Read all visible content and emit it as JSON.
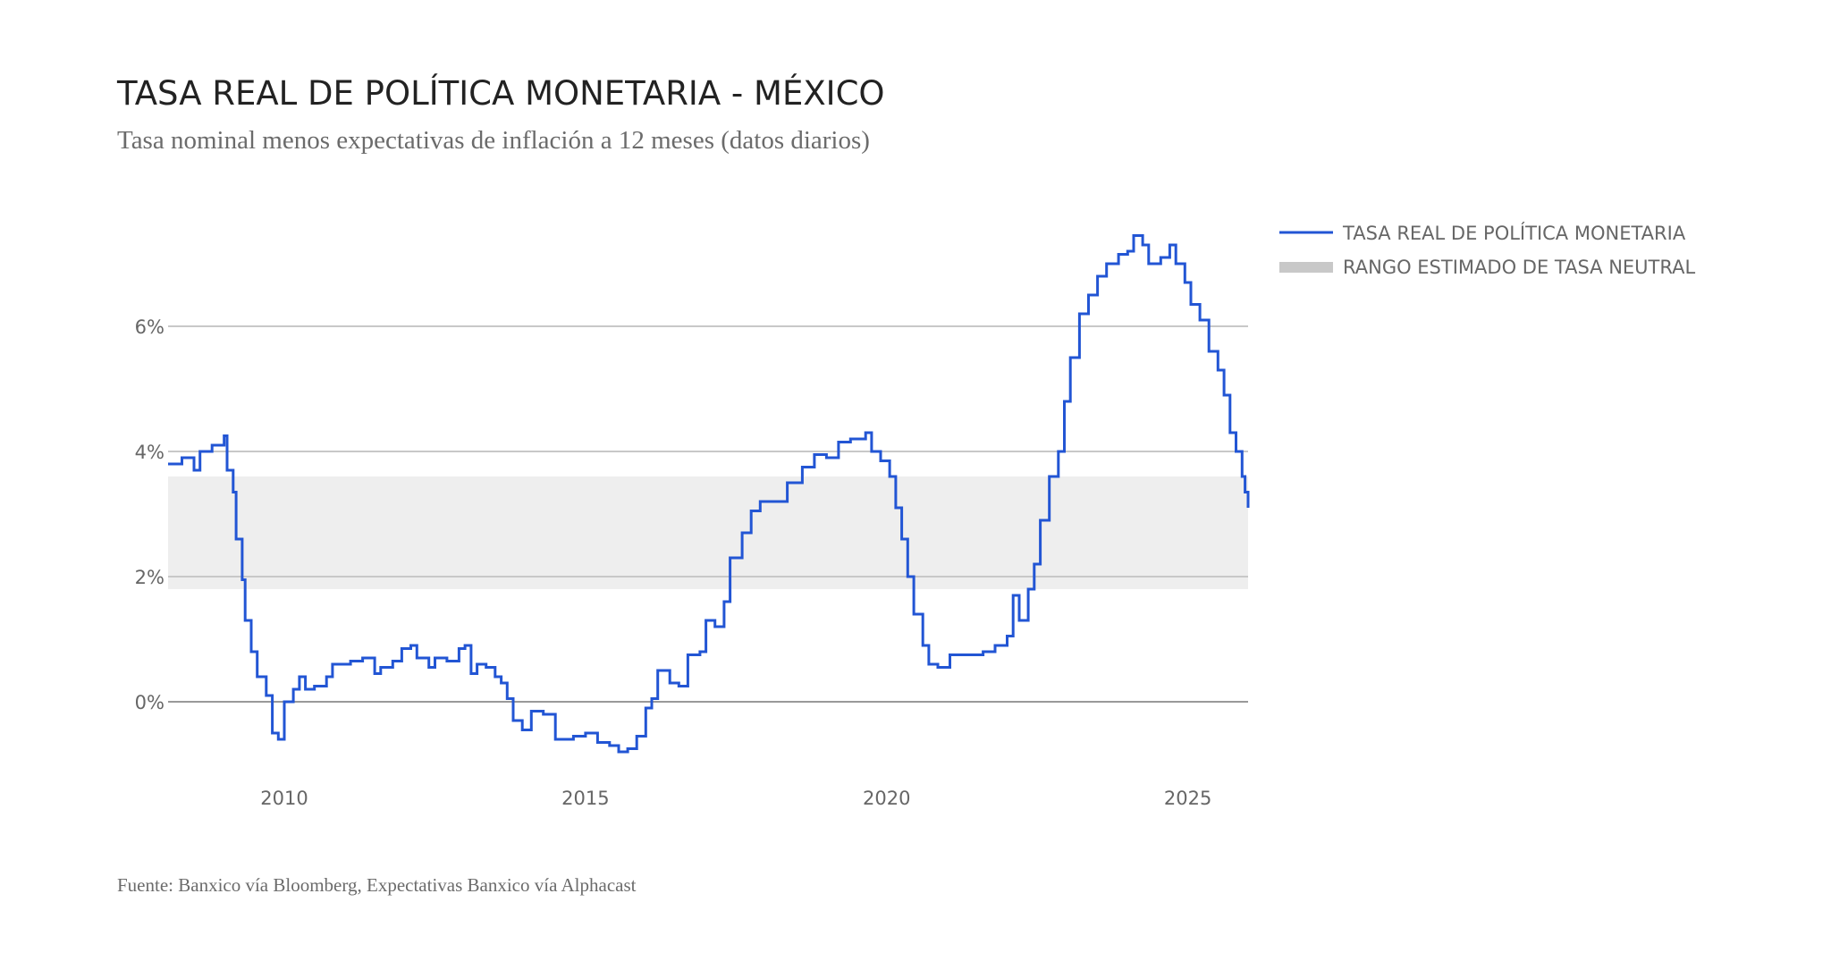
{
  "colors": {
    "line": "#2255d4",
    "band": "#eeeeee",
    "grid": "#c8c8c8",
    "zero": "#999999",
    "legend_band": "#c8c8c8"
  },
  "chart_data": {
    "type": "line",
    "title": "TASA REAL DE POLÍTICA MONETARIA - MÉXICO",
    "subtitle": "Tasa nominal menos expectativas de inflación a 12 meses (datos diarios)",
    "source": "Fuente: Banxico vía Bloomberg, Expectativas Banxico vía Alphacast",
    "xlabel": "",
    "ylabel": "",
    "xlim": [
      2008.07,
      2026.0
    ],
    "ylim": [
      -1.2,
      7.5
    ],
    "x_ticks": [
      {
        "value": 2010,
        "label": "2010"
      },
      {
        "value": 2015,
        "label": "2015"
      },
      {
        "value": 2020,
        "label": "2020"
      },
      {
        "value": 2025,
        "label": "2025"
      }
    ],
    "y_ticks": [
      {
        "value": 0,
        "label": "0%"
      },
      {
        "value": 2,
        "label": "2%"
      },
      {
        "value": 4,
        "label": "4%"
      },
      {
        "value": 6,
        "label": "6%"
      }
    ],
    "grid": true,
    "legend_position": "right",
    "band": {
      "name": "RANGO ESTIMADO DE TASA NEUTRAL",
      "low": 1.8,
      "high": 3.6
    },
    "series": [
      {
        "name": "TASA REAL DE POLÍTICA MONETARIA",
        "step": true,
        "x": [
          2008.07,
          2008.3,
          2008.5,
          2008.6,
          2008.8,
          2009.0,
          2009.05,
          2009.15,
          2009.2,
          2009.3,
          2009.35,
          2009.45,
          2009.55,
          2009.7,
          2009.8,
          2009.9,
          2010.0,
          2010.15,
          2010.25,
          2010.35,
          2010.5,
          2010.7,
          2010.8,
          2011.1,
          2011.3,
          2011.5,
          2011.6,
          2011.8,
          2011.95,
          2012.1,
          2012.2,
          2012.4,
          2012.5,
          2012.7,
          2012.9,
          2013.0,
          2013.1,
          2013.2,
          2013.35,
          2013.5,
          2013.6,
          2013.7,
          2013.8,
          2013.95,
          2014.1,
          2014.3,
          2014.5,
          2014.8,
          2015.0,
          2015.2,
          2015.4,
          2015.55,
          2015.7,
          2015.85,
          2016.0,
          2016.1,
          2016.2,
          2016.4,
          2016.55,
          2016.7,
          2016.9,
          2017.0,
          2017.15,
          2017.3,
          2017.4,
          2017.6,
          2017.75,
          2017.9,
          2018.2,
          2018.35,
          2018.6,
          2018.8,
          2019.0,
          2019.2,
          2019.4,
          2019.65,
          2019.75,
          2019.9,
          2020.05,
          2020.15,
          2020.25,
          2020.35,
          2020.45,
          2020.6,
          2020.7,
          2020.85,
          2021.05,
          2021.3,
          2021.6,
          2021.8,
          2022.0,
          2022.1,
          2022.2,
          2022.35,
          2022.45,
          2022.55,
          2022.7,
          2022.85,
          2022.95,
          2023.05,
          2023.2,
          2023.35,
          2023.5,
          2023.65,
          2023.85,
          2024.0,
          2024.1,
          2024.25,
          2024.35,
          2024.55,
          2024.7,
          2024.8,
          2024.95,
          2025.05,
          2025.2,
          2025.35,
          2025.5,
          2025.6,
          2025.7,
          2025.8,
          2025.9,
          2025.95,
          2026.0
        ],
        "values": [
          3.8,
          3.9,
          3.7,
          4.0,
          4.1,
          4.25,
          3.7,
          3.35,
          2.6,
          1.95,
          1.3,
          0.8,
          0.4,
          0.1,
          -0.5,
          -0.6,
          0.0,
          0.2,
          0.4,
          0.2,
          0.25,
          0.4,
          0.6,
          0.65,
          0.7,
          0.45,
          0.55,
          0.65,
          0.85,
          0.9,
          0.7,
          0.55,
          0.7,
          0.65,
          0.85,
          0.9,
          0.45,
          0.6,
          0.55,
          0.4,
          0.3,
          0.05,
          -0.3,
          -0.45,
          -0.15,
          -0.2,
          -0.6,
          -0.55,
          -0.5,
          -0.65,
          -0.7,
          -0.8,
          -0.75,
          -0.55,
          -0.1,
          0.05,
          0.5,
          0.3,
          0.25,
          0.75,
          0.8,
          1.3,
          1.2,
          1.6,
          2.3,
          2.7,
          3.05,
          3.2,
          3.2,
          3.5,
          3.75,
          3.95,
          3.9,
          4.15,
          4.2,
          4.3,
          4.0,
          3.85,
          3.6,
          3.1,
          2.6,
          2.0,
          1.4,
          0.9,
          0.6,
          0.55,
          0.75,
          0.75,
          0.8,
          0.9,
          1.05,
          1.7,
          1.3,
          1.8,
          2.2,
          2.9,
          3.6,
          4.0,
          4.8,
          5.5,
          6.2,
          6.5,
          6.8,
          7.0,
          7.15,
          7.2,
          7.45,
          7.3,
          7.0,
          7.1,
          7.3,
          7.0,
          6.7,
          6.35,
          6.1,
          5.6,
          5.3,
          4.9,
          4.3,
          4.0,
          3.6,
          3.35,
          3.1
        ]
      }
    ]
  }
}
